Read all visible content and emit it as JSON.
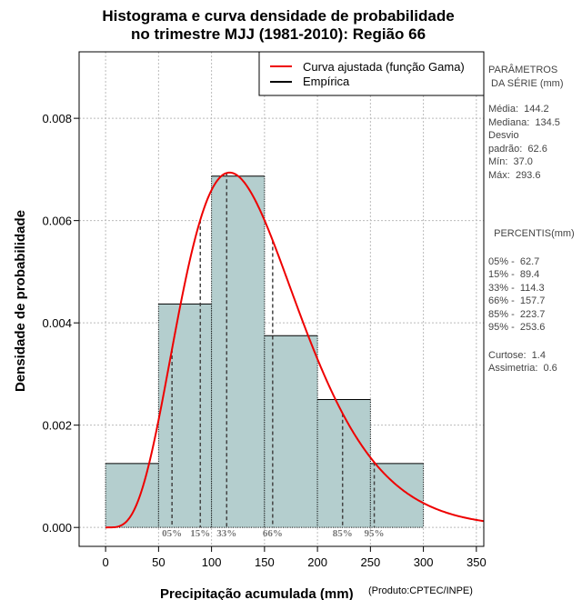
{
  "title": {
    "line1": "Histograma e curva densidade de probabilidade",
    "line2": "no trimestre MJJ (1981-2010): Região 66"
  },
  "chart_data": {
    "type": "bar",
    "subtype": "histogram-with-density-curve",
    "xlabel": "Precipitação acumulada (mm)",
    "ylabel": "Densidade de probabilidade",
    "credit": "(Produto:CPTEC/INPE)",
    "xlim": [
      -25,
      357
    ],
    "ylim": [
      -0.00037,
      0.0093
    ],
    "x_ticks": [
      0,
      50,
      100,
      150,
      200,
      250,
      300,
      350
    ],
    "y_ticks": [
      0.0,
      0.002,
      0.004,
      0.006,
      0.008
    ],
    "y_tick_labels": [
      "0.000",
      "0.002",
      "0.004",
      "0.006",
      "0.008"
    ],
    "grid": true,
    "bins": [
      {
        "x0": 0,
        "x1": 50,
        "density": 0.00125
      },
      {
        "x0": 50,
        "x1": 100,
        "density": 0.00437
      },
      {
        "x0": 100,
        "x1": 150,
        "density": 0.00687
      },
      {
        "x0": 150,
        "x1": 200,
        "density": 0.00375
      },
      {
        "x0": 200,
        "x1": 250,
        "density": 0.0025
      },
      {
        "x0": 250,
        "x1": 300,
        "density": 0.00125
      }
    ],
    "bar_color": "#b4cece",
    "curve": {
      "name": "Curva ajustada (função Gama)",
      "color": "#ee0000",
      "distribution": "gamma",
      "mean": 144.2,
      "sd": 62.6
    },
    "percentile_markers": [
      {
        "label": "05%",
        "x": 62.7
      },
      {
        "label": "15%",
        "x": 89.4
      },
      {
        "label": "33%",
        "x": 114.3
      },
      {
        "label": "66%",
        "x": 157.7
      },
      {
        "label": "85%",
        "x": 223.7
      },
      {
        "label": "95%",
        "x": 253.6
      }
    ],
    "legend": [
      {
        "label": "Curva ajustada (função Gama)",
        "color": "#ee0000"
      },
      {
        "label": "Empírica",
        "color": "#000000"
      }
    ],
    "legend_position": "top-right"
  },
  "stats": {
    "params_title1": "PARÂMETROS",
    "params_title2": " DA SÉRIE (mm)",
    "media": "Média:  144.2",
    "mediana": "Mediana:  134.5",
    "desvio1": "Desvio",
    "desvio2": "padrão:  62.6",
    "min": "Mín:  37.0",
    "max": "Máx:  293.6",
    "percentis_title": "  PERCENTIS(mm)",
    "p05": "05% -  62.7",
    "p15": "15% -  89.4",
    "p33": "33% -  114.3",
    "p66": "66% -  157.7",
    "p85": "85% -  223.7",
    "p95": "95% -  253.6",
    "curtose": "Curtose:  1.4",
    "assimetria": "Assimetria:  0.6"
  }
}
